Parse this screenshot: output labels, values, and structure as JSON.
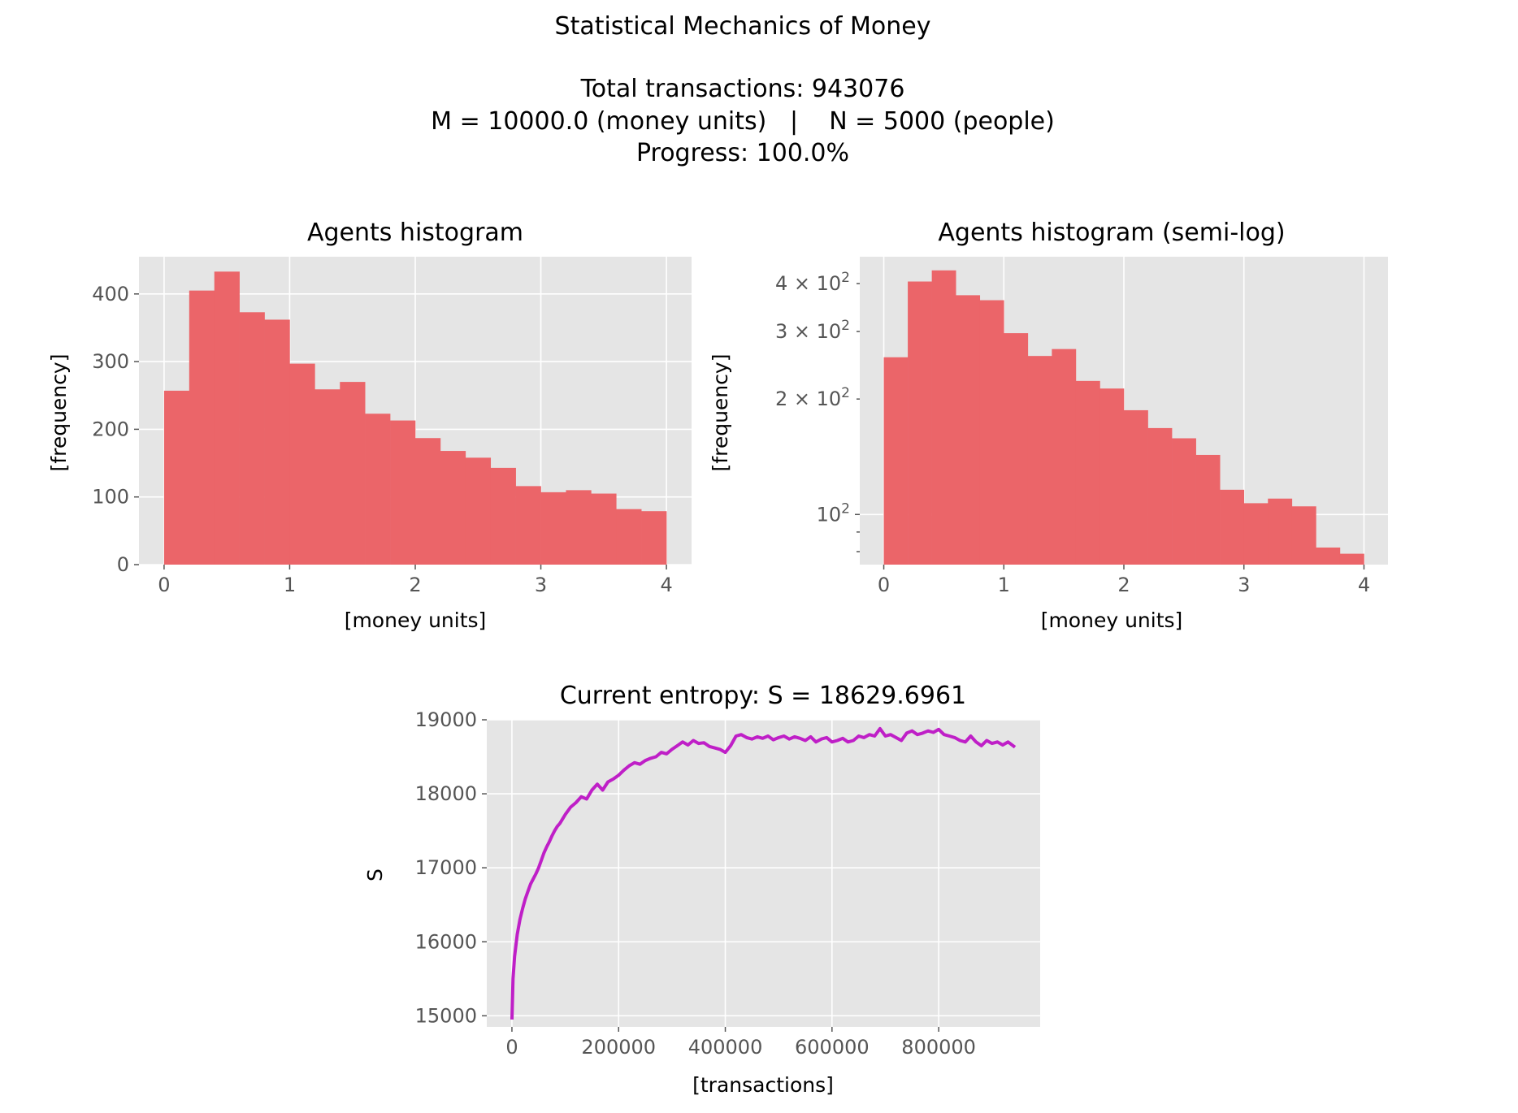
{
  "header": {
    "title": "Statistical Mechanics of Money",
    "transactions_line": "Total transactions: 943076",
    "params_line": "M = 10000.0 (money units)   |    N = 5000 (people)",
    "progress_line": "Progress: 100.0%"
  },
  "colors": {
    "bar": "#eb6569",
    "line": "#bf1fc7",
    "axes_bg": "#e5e5e5",
    "grid": "#ffffff",
    "tick": "#555555"
  },
  "chart_data": [
    {
      "type": "bar",
      "title": "Agents histogram",
      "xlabel": "[money units]",
      "ylabel": "[frequency]",
      "bin_edges": [
        0,
        0.2,
        0.4,
        0.6,
        0.8,
        1.0,
        1.2,
        1.4,
        1.6,
        1.8,
        2.0,
        2.2,
        2.4,
        2.6,
        2.8,
        3.0,
        3.2,
        3.4,
        3.6,
        3.8,
        4.0
      ],
      "values": [
        257,
        405,
        433,
        373,
        362,
        297,
        259,
        270,
        223,
        213,
        187,
        168,
        158,
        143,
        116,
        107,
        110,
        105,
        82,
        79
      ],
      "xlim": [
        -0.2,
        4.2
      ],
      "ylim": [
        0,
        455
      ],
      "xticks": [
        0,
        1,
        2,
        3,
        4
      ],
      "xtick_labels": [
        "0",
        "1",
        "2",
        "3",
        "4"
      ],
      "yticks": [
        0,
        100,
        200,
        300,
        400
      ],
      "ytick_labels": [
        "0",
        "100",
        "200",
        "300",
        "400"
      ],
      "grid": true
    },
    {
      "type": "bar",
      "title": "Agents histogram (semi-log)",
      "xlabel": "[money units]",
      "ylabel": "[frequency]",
      "yscale": "log",
      "bin_edges": [
        0,
        0.2,
        0.4,
        0.6,
        0.8,
        1.0,
        1.2,
        1.4,
        1.6,
        1.8,
        2.0,
        2.2,
        2.4,
        2.6,
        2.8,
        3.0,
        3.2,
        3.4,
        3.6,
        3.8,
        4.0
      ],
      "values": [
        257,
        405,
        433,
        373,
        362,
        297,
        259,
        270,
        223,
        213,
        187,
        168,
        158,
        143,
        116,
        107,
        110,
        105,
        82,
        79
      ],
      "xlim": [
        -0.2,
        4.2
      ],
      "ylim": [
        74,
        470
      ],
      "xticks": [
        0,
        1,
        2,
        3,
        4
      ],
      "xtick_labels": [
        "0",
        "1",
        "2",
        "3",
        "4"
      ],
      "yticks_major": [
        100
      ],
      "ytick_major_labels": [
        {
          "base": "10",
          "exp": "2"
        }
      ],
      "yticks_minor": [
        80,
        90,
        200,
        300,
        400
      ],
      "ytick_minor_labels": [
        "",
        "",
        "2 × 10",
        "3 × 10",
        "4 × 10"
      ],
      "ytick_minor_exps": [
        "",
        "",
        "2",
        "2",
        "2"
      ],
      "grid": true
    },
    {
      "type": "line",
      "title": "Current entropy: S = 18629.6961",
      "xlabel": "[transactions]",
      "ylabel": "S",
      "xlim": [
        -47154,
        990230
      ],
      "ylim": [
        14850,
        19000
      ],
      "xticks": [
        0,
        200000,
        400000,
        600000,
        800000
      ],
      "xtick_labels": [
        "0",
        "200000",
        "400000",
        "600000",
        "800000"
      ],
      "yticks": [
        15000,
        16000,
        17000,
        18000,
        19000
      ],
      "ytick_labels": [
        "15000",
        "16000",
        "17000",
        "18000",
        "19000"
      ],
      "grid": true,
      "series": [
        {
          "x": [
            0,
            2000,
            5000,
            10000,
            15000,
            20000,
            25000,
            30000,
            35000,
            40000,
            45000,
            50000,
            55000,
            60000,
            65000,
            70000,
            75000,
            80000,
            85000,
            90000,
            95000,
            100000,
            110000,
            120000,
            130000,
            140000,
            150000,
            160000,
            170000,
            180000,
            190000,
            200000,
            210000,
            220000,
            230000,
            240000,
            250000,
            260000,
            270000,
            280000,
            290000,
            300000,
            310000,
            320000,
            330000,
            340000,
            350000,
            360000,
            370000,
            380000,
            390000,
            400000,
            410000,
            420000,
            430000,
            440000,
            450000,
            460000,
            470000,
            480000,
            490000,
            500000,
            510000,
            520000,
            530000,
            540000,
            550000,
            560000,
            570000,
            580000,
            590000,
            600000,
            610000,
            620000,
            630000,
            640000,
            650000,
            660000,
            670000,
            680000,
            690000,
            700000,
            710000,
            720000,
            730000,
            740000,
            750000,
            760000,
            770000,
            780000,
            790000,
            800000,
            810000,
            820000,
            830000,
            840000,
            850000,
            860000,
            870000,
            880000,
            890000,
            900000,
            910000,
            920000,
            930000,
            943076
          ],
          "y": [
            14950,
            15500,
            15800,
            16100,
            16300,
            16450,
            16580,
            16680,
            16780,
            16850,
            16920,
            17000,
            17100,
            17200,
            17280,
            17350,
            17430,
            17500,
            17560,
            17600,
            17660,
            17720,
            17820,
            17880,
            17960,
            17930,
            18050,
            18130,
            18050,
            18160,
            18200,
            18250,
            18320,
            18380,
            18420,
            18400,
            18450,
            18480,
            18500,
            18560,
            18540,
            18600,
            18650,
            18700,
            18660,
            18720,
            18680,
            18690,
            18640,
            18620,
            18600,
            18560,
            18650,
            18780,
            18800,
            18760,
            18740,
            18770,
            18750,
            18780,
            18730,
            18760,
            18780,
            18740,
            18770,
            18750,
            18720,
            18770,
            18700,
            18740,
            18760,
            18700,
            18720,
            18750,
            18700,
            18720,
            18780,
            18760,
            18800,
            18780,
            18880,
            18780,
            18800,
            18760,
            18720,
            18820,
            18850,
            18800,
            18820,
            18850,
            18830,
            18870,
            18800,
            18780,
            18760,
            18720,
            18700,
            18780,
            18700,
            18650,
            18720,
            18680,
            18700,
            18660,
            18700,
            18630
          ]
        }
      ]
    }
  ]
}
